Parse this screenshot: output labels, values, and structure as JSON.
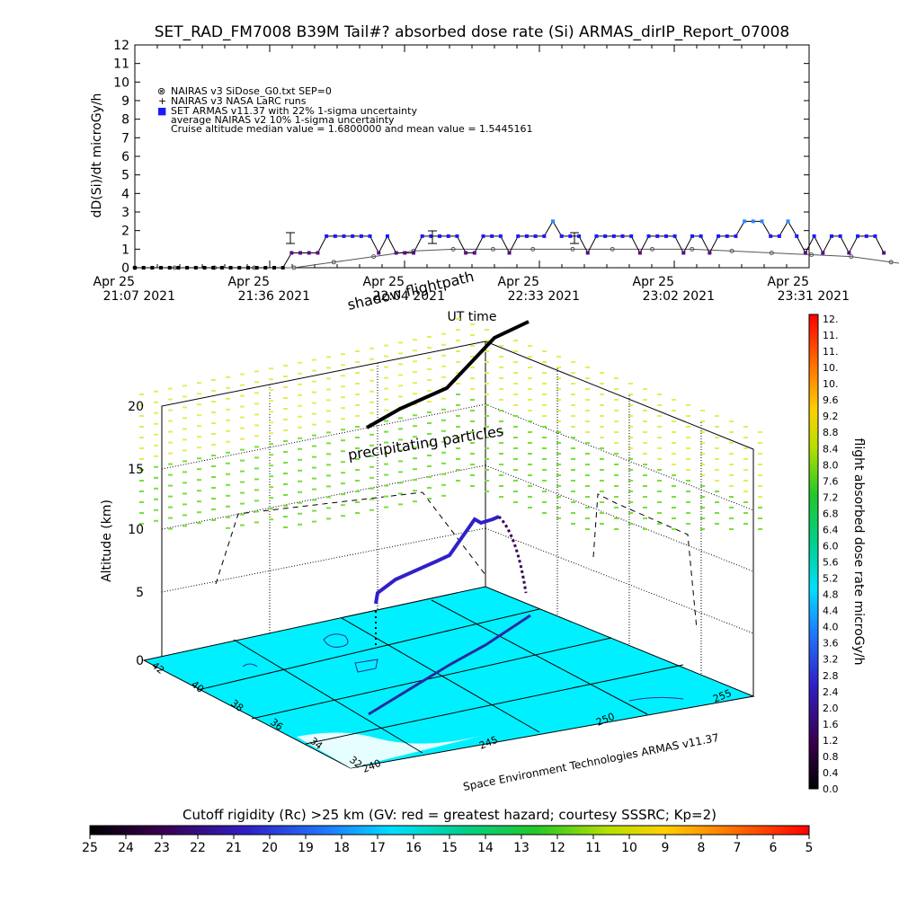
{
  "title": "SET_RAD_FM7008  B39M Tail#? absorbed dose rate (Si) ARMAS_dirIP_Report_07008",
  "chart_data": [
    {
      "type": "line",
      "title": "SET_RAD_FM7008  B39M Tail#? absorbed dose rate (Si) ARMAS_dirIP_Report_07008",
      "ylabel": "dD(Si)/dt microGy/h",
      "xlabel": "UT time",
      "ylim": [
        0,
        12
      ],
      "yticks": [
        "0",
        "1",
        "2",
        "3",
        "4",
        "5",
        "6",
        "7",
        "8",
        "9",
        "10",
        "11",
        "12"
      ],
      "xticks": [
        {
          "line1": "Apr 25",
          "line2": "21:07 2021"
        },
        {
          "line1": "Apr 25",
          "line2": "21:36 2021"
        },
        {
          "line1": "Apr 25",
          "line2": "22:04 2021"
        },
        {
          "line1": "Apr 25",
          "line2": "22:33 2021"
        },
        {
          "line1": "Apr 25",
          "line2": "23:02 2021"
        },
        {
          "line1": "Apr 25",
          "line2": "23:31 2021"
        }
      ],
      "legend": [
        {
          "marker": "⊗",
          "text": "NAIRAS v3 SiDose_G0.txt SEP=0"
        },
        {
          "marker": "+",
          "text": "NAIRAS v3 NASA LaRC runs"
        },
        {
          "marker": "■",
          "text": "SET ARMAS v11.37 with 22% 1-sigma uncertainty"
        },
        {
          "marker": "",
          "text": "average NAIRAS v2 10% 1-sigma uncertainty"
        },
        {
          "marker": "",
          "text": "Cruise altitude median value = 1.6800000 and mean value = 1.5445161"
        }
      ],
      "legend_placement": "top-left",
      "series": [
        {
          "name": "SET ARMAS v11.37 with 22% 1-sigma uncertainty",
          "x_minutes": [
            0,
            2,
            4,
            6,
            8,
            10,
            12,
            14,
            16,
            18,
            20,
            22,
            24,
            26,
            28,
            30,
            32,
            34,
            36,
            38,
            40,
            42,
            44,
            46,
            48,
            50,
            52,
            54,
            56,
            58,
            60,
            62,
            64,
            66,
            68,
            70,
            72,
            74,
            76,
            78,
            80,
            82,
            84,
            86,
            88,
            90,
            92,
            94,
            96,
            98,
            100,
            102,
            104,
            106,
            108,
            110,
            112,
            114,
            116,
            118,
            120,
            122,
            124,
            126,
            128,
            130,
            132,
            134,
            136,
            138,
            140,
            142,
            144,
            146,
            148,
            150,
            152,
            154,
            156,
            158,
            160,
            162,
            164,
            166,
            168,
            170,
            172
          ],
          "values": [
            0,
            0,
            0,
            0,
            0,
            0,
            0,
            0,
            0,
            0,
            0,
            0,
            0,
            0,
            0,
            0,
            0,
            0,
            0.8,
            0.8,
            0.8,
            0.8,
            1.7,
            1.7,
            1.7,
            1.7,
            1.7,
            1.7,
            0.8,
            1.7,
            0.8,
            0.8,
            0.8,
            1.7,
            1.7,
            1.7,
            1.7,
            1.7,
            0.8,
            0.8,
            1.7,
            1.7,
            1.7,
            0.8,
            1.7,
            1.7,
            1.7,
            1.7,
            2.5,
            1.7,
            1.7,
            1.7,
            0.8,
            1.7,
            1.7,
            1.7,
            1.7,
            1.7,
            0.8,
            1.7,
            1.7,
            1.7,
            1.7,
            0.8,
            1.7,
            1.7,
            0.8,
            1.7,
            1.7,
            1.7,
            2.5,
            2.5,
            2.5,
            1.7,
            1.7,
            2.5,
            1.7,
            0.8,
            1.7,
            0.8,
            1.7,
            1.7,
            0.8,
            1.7,
            1.7,
            1.7,
            0.8
          ]
        },
        {
          "name": "NAIRAS v3 SiDose_G0.txt SEP=0",
          "x_minutes": [
            0,
            10,
            20,
            30,
            40,
            50,
            60,
            70,
            80,
            90,
            100,
            110,
            120,
            130,
            140,
            150,
            160,
            170,
            180,
            190,
            200
          ],
          "values": [
            0,
            0,
            0,
            0,
            0,
            0.3,
            0.6,
            0.9,
            1,
            1,
            1,
            1,
            1,
            1,
            1,
            0.9,
            0.8,
            0.7,
            0.6,
            0.3,
            0
          ]
        }
      ]
    },
    {
      "type": "scatter",
      "title": "shadow flightpath",
      "zlabel": "Altitude (km)",
      "zlim": [
        0,
        20
      ],
      "zticks": [
        "0",
        "5",
        "10",
        "15",
        "20"
      ],
      "lat_ticks": [
        "42",
        "40",
        "38",
        "36",
        "34",
        "32"
      ],
      "lon_ticks": [
        "240",
        "245",
        "250",
        "255"
      ],
      "annotations": [
        "shadow flightpath",
        "precipitating particles",
        "Space Environment Technologies ARMAS v11.37"
      ]
    }
  ],
  "colorbar_right": {
    "label": "flight absorbed dose rate microGy/h",
    "ticks": [
      "12.",
      "11.",
      "11.",
      "10.",
      "10.",
      "9.6",
      "9.2",
      "8.8",
      "8.4",
      "8.0",
      "7.6",
      "7.2",
      "6.8",
      "6.4",
      "6.0",
      "5.6",
      "5.2",
      "4.8",
      "4.4",
      "4.0",
      "3.6",
      "3.2",
      "2.8",
      "2.4",
      "2.0",
      "1.6",
      "1.2",
      "0.8",
      "0.4",
      "0.0"
    ]
  },
  "colorbar_bottom": {
    "label": "Cutoff rigidity (Rc) >25 km (GV: red = greatest hazard; courtesy SSSRC; Kp=2)",
    "ticks": [
      "25",
      "24",
      "23",
      "22",
      "21",
      "20",
      "19",
      "18",
      "17",
      "16",
      "15",
      "14",
      "13",
      "12",
      "11",
      "10",
      "9",
      "8",
      "7",
      "6",
      "5"
    ]
  },
  "colors": {
    "armas_series": "#1a1aff",
    "armas_low": "#5a0a8a",
    "armas_high": "#2a8aff",
    "nairas": "#555555",
    "ground": "#00f0ff",
    "precip_upper": "#e6ec5a",
    "precip_lower": "#7adf3a",
    "flightpath_track": "#000000"
  }
}
